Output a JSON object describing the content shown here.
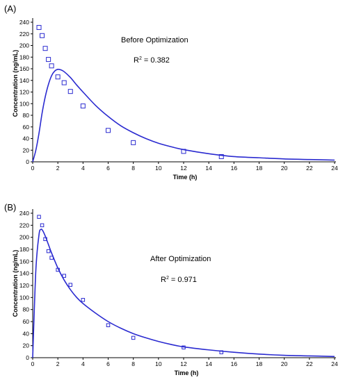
{
  "chart_data": [
    {
      "type": "scatter",
      "panel_label": "(A)",
      "annotation": "Before Optimization",
      "r2_label": "R",
      "r2_sup": "2",
      "r2_value": " = 0.382",
      "xlabel": "Time (h)",
      "ylabel": "Concentration (ng/mL)",
      "xlim": [
        0,
        24
      ],
      "ylim": [
        0,
        240
      ],
      "xticks": [
        0,
        2,
        4,
        6,
        8,
        10,
        12,
        14,
        16,
        18,
        20,
        22,
        24
      ],
      "yticks": [
        0,
        20,
        40,
        60,
        80,
        100,
        120,
        140,
        160,
        180,
        200,
        220,
        240
      ],
      "grid": false,
      "series": [
        {
          "kind": "points",
          "x": [
            0.5,
            0.75,
            1,
            1.25,
            1.5,
            2,
            2.5,
            3,
            4,
            6,
            8,
            12,
            15
          ],
          "y": [
            231,
            217,
            195,
            176,
            165,
            146,
            136,
            121,
            96,
            54,
            33,
            18,
            9
          ]
        },
        {
          "kind": "line",
          "x": [
            0,
            0.25,
            0.5,
            0.75,
            1,
            1.25,
            1.5,
            1.75,
            2,
            2.25,
            2.5,
            3,
            3.5,
            4,
            5,
            6,
            7,
            8,
            9,
            10,
            11,
            12,
            14,
            16,
            18,
            20,
            22,
            24
          ],
          "y": [
            0,
            20,
            49,
            84,
            112,
            133,
            148,
            156,
            159,
            158,
            155,
            145,
            132,
            120,
            97,
            78,
            62,
            50,
            40,
            32,
            26,
            21,
            14,
            9,
            7,
            5,
            4,
            3
          ]
        }
      ]
    },
    {
      "type": "scatter",
      "panel_label": "(B)",
      "annotation": "After Optimization",
      "r2_label": "R",
      "r2_sup": "2",
      "r2_value": " = 0.971",
      "xlabel": "Time (h)",
      "ylabel": "Concentration (ng/mL)",
      "xlim": [
        0,
        24
      ],
      "ylim": [
        0,
        240
      ],
      "xticks": [
        0,
        2,
        4,
        6,
        8,
        10,
        12,
        14,
        16,
        18,
        20,
        22,
        24
      ],
      "yticks": [
        0,
        20,
        40,
        60,
        80,
        100,
        120,
        140,
        160,
        180,
        200,
        220,
        240
      ],
      "grid": false,
      "series": [
        {
          "kind": "points",
          "x": [
            0.5,
            0.75,
            1,
            1.25,
            1.5,
            2,
            2.5,
            3,
            4,
            6,
            8,
            12,
            15
          ],
          "y": [
            234,
            220,
            197,
            177,
            166,
            146,
            136,
            121,
            96,
            54,
            33,
            17,
            9
          ]
        },
        {
          "kind": "line",
          "x": [
            0,
            0.25,
            0.5,
            0.65,
            0.8,
            1,
            1.25,
            1.5,
            2,
            2.5,
            3,
            3.5,
            4,
            5,
            6,
            7,
            8,
            9,
            10,
            11,
            12,
            14,
            16,
            18,
            20,
            22,
            24
          ],
          "y": [
            0,
            145,
            204,
            213,
            211,
            202,
            188,
            174,
            149,
            129,
            113,
            100,
            90,
            74,
            60,
            49,
            40,
            33,
            27,
            22,
            18,
            13,
            9,
            6,
            4,
            3,
            2
          ]
        }
      ]
    }
  ]
}
